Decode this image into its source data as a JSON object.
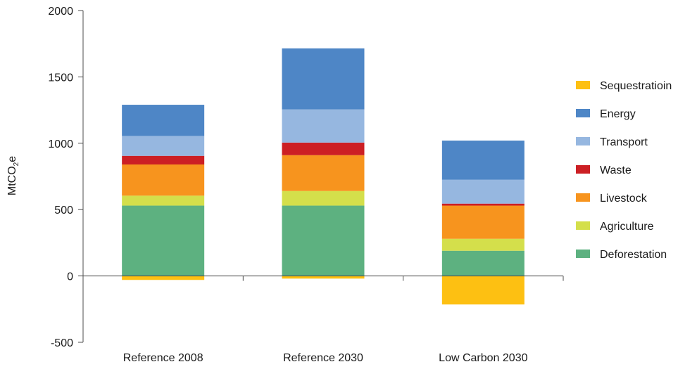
{
  "chart_data": {
    "type": "bar",
    "stacked": true,
    "ylabel": {
      "prefix": "MtCO",
      "subscript": "2",
      "suffix": "e"
    },
    "ylim": [
      -500,
      2000
    ],
    "yticks": [
      -500,
      0,
      500,
      1000,
      1500,
      2000
    ],
    "ytick_labels": [
      "-500",
      "0",
      "500",
      "1000",
      "1500",
      "2000"
    ],
    "grid": false,
    "legend_position": "right",
    "categories": [
      "Reference 2008",
      "Reference 2030",
      "Low Carbon 2030"
    ],
    "series": [
      {
        "name": "Deforestation",
        "color": "#5db180",
        "values": [
          530,
          530,
          190
        ]
      },
      {
        "name": "Agriculture",
        "color": "#d4df4b",
        "values": [
          75,
          110,
          90
        ]
      },
      {
        "name": "Livestock",
        "color": "#f7941e",
        "values": [
          235,
          270,
          250
        ]
      },
      {
        "name": "Waste",
        "color": "#cc1f24",
        "values": [
          65,
          95,
          15
        ]
      },
      {
        "name": "Transport",
        "color": "#96b7e0",
        "values": [
          150,
          250,
          180
        ]
      },
      {
        "name": "Energy",
        "color": "#4e86c6",
        "values": [
          235,
          460,
          295
        ]
      },
      {
        "name": "Sequestratioin",
        "color": "#fdc012",
        "values": [
          -30,
          -20,
          -215
        ]
      }
    ],
    "legend_order": [
      "Sequestratioin",
      "Energy",
      "Transport",
      "Waste",
      "Livestock",
      "Agriculture",
      "Deforestation"
    ]
  }
}
